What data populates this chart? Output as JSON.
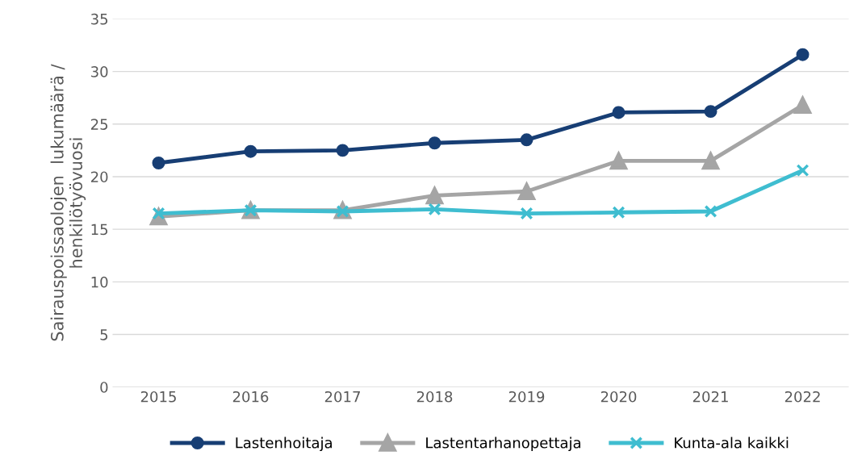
{
  "chart_data": {
    "type": "line",
    "ylabel": "Sairauspoissaolojen  lukumäärä /\nhenkilötyövuosi",
    "categories": [
      "2015",
      "2016",
      "2017",
      "2018",
      "2019",
      "2020",
      "2021",
      "2022"
    ],
    "series": [
      {
        "name": "Lastenhoitaja",
        "color": "#173e74",
        "marker": "circle",
        "values": [
          21.3,
          22.4,
          22.5,
          23.2,
          23.5,
          26.1,
          26.2,
          31.6
        ]
      },
      {
        "name": "Lastentarhanopettaja",
        "color": "#a5a5a5",
        "marker": "triangle",
        "values": [
          16.2,
          16.8,
          16.8,
          18.2,
          18.6,
          21.5,
          21.5,
          26.8
        ]
      },
      {
        "name": "Kunta-ala kaikki",
        "color": "#3fbdd0",
        "marker": "cross",
        "values": [
          16.5,
          16.8,
          16.7,
          16.9,
          16.5,
          16.6,
          16.7,
          20.6
        ]
      }
    ],
    "ylim": [
      0,
      35
    ],
    "yticks": [
      0,
      5,
      10,
      15,
      20,
      25,
      30,
      35
    ],
    "grid": "y",
    "legend": "bottom",
    "line_style": "solid"
  }
}
